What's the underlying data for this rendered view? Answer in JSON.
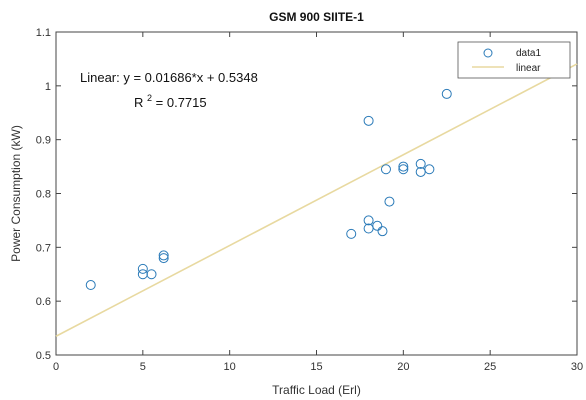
{
  "chart_data": {
    "type": "scatter",
    "title": "GSM 900 SIITE-1",
    "xlabel": "Traffic Load (Erl)",
    "ylabel": "Power Consumption (kW)",
    "xlim": [
      0,
      30
    ],
    "ylim": [
      0.5,
      1.1
    ],
    "xticks": [
      "0",
      "5",
      "10",
      "15",
      "20",
      "25",
      "30"
    ],
    "yticks": [
      "0.5",
      "0.6",
      "0.7",
      "0.8",
      "0.9",
      "1",
      "1.1"
    ],
    "grid": false,
    "legend_position": "top-right",
    "series": [
      {
        "name": "data1",
        "marker": "circle",
        "color": "#2a7ab8",
        "points": [
          {
            "x": 2.0,
            "y": 0.63
          },
          {
            "x": 5.0,
            "y": 0.66
          },
          {
            "x": 5.0,
            "y": 0.65
          },
          {
            "x": 5.5,
            "y": 0.65
          },
          {
            "x": 6.2,
            "y": 0.685
          },
          {
            "x": 6.2,
            "y": 0.68
          },
          {
            "x": 17.0,
            "y": 0.725
          },
          {
            "x": 18.0,
            "y": 0.75
          },
          {
            "x": 18.0,
            "y": 0.735
          },
          {
            "x": 18.0,
            "y": 0.935
          },
          {
            "x": 18.5,
            "y": 0.74
          },
          {
            "x": 18.8,
            "y": 0.73
          },
          {
            "x": 19.0,
            "y": 0.845
          },
          {
            "x": 19.2,
            "y": 0.785
          },
          {
            "x": 20.0,
            "y": 0.85
          },
          {
            "x": 20.0,
            "y": 0.845
          },
          {
            "x": 21.0,
            "y": 0.855
          },
          {
            "x": 21.0,
            "y": 0.84
          },
          {
            "x": 21.5,
            "y": 0.845
          },
          {
            "x": 22.5,
            "y": 0.985
          }
        ]
      },
      {
        "name": "linear",
        "type": "line",
        "color": "#e8d9a0",
        "slope": 0.01686,
        "intercept": 0.5348
      }
    ],
    "annotation": {
      "equation": "Linear:  y = 0.01686*x + 0.5348",
      "r2_label": "R",
      "r2_sup": "2",
      "r2_value": " = 0.7715"
    },
    "legend": {
      "entries": [
        "data1",
        "linear"
      ]
    }
  }
}
